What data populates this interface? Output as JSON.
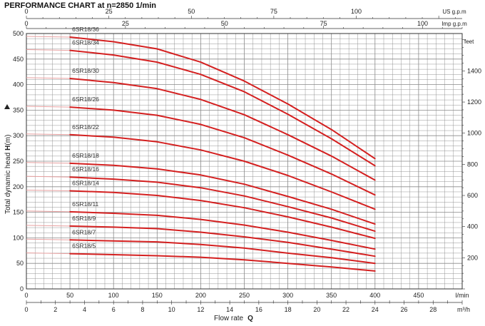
{
  "chart_data": {
    "type": "line",
    "title": "PERFORMANCE  CHART  at  n=2850 1/min",
    "xlabel": "Flow  rate",
    "xlabel_symbol": "Q",
    "ylabel": "Total dynamic head",
    "ylabel_symbol": "H",
    "ylabel_unit": "(m)",
    "x_unit": "l/min",
    "x_range": [
      0,
      500
    ],
    "y_range": [
      0,
      500
    ],
    "grid": true,
    "x_ticks": [
      "0",
      "50",
      "100",
      "150",
      "200",
      "250",
      "300",
      "350",
      "400",
      "450"
    ],
    "y_ticks": [
      "0",
      "50",
      "100",
      "150",
      "200",
      "250",
      "300",
      "350",
      "400",
      "450",
      "500"
    ],
    "secondary_x_axes": [
      {
        "unit": "m³/h",
        "position": "bottom",
        "range": [
          0,
          30
        ],
        "ticks": [
          "0",
          "2",
          "4",
          "6",
          "8",
          "10",
          "12",
          "14",
          "16",
          "18",
          "20",
          "22",
          "24",
          "26",
          "28"
        ]
      },
      {
        "unit": "US g.p.m",
        "position": "top",
        "range": [
          0,
          132.1
        ],
        "ticks": [
          "0",
          "25",
          "50",
          "75",
          "100"
        ]
      },
      {
        "unit": "Imp g.p.m",
        "position": "top",
        "range": [
          0,
          110
        ],
        "ticks": [
          "0",
          "25",
          "50",
          "75",
          "100"
        ]
      }
    ],
    "secondary_y_axis": {
      "unit": "feet",
      "position": "right",
      "range": [
        0,
        1640
      ],
      "ticks": [
        "200",
        "400",
        "600",
        "800",
        "1000",
        "1200",
        "1400"
      ]
    },
    "series": [
      {
        "name": "6SR18/36",
        "x": [
          50,
          100,
          150,
          200,
          250,
          300,
          350,
          400
        ],
        "y": [
          493,
          484,
          470,
          444,
          407,
          362,
          312,
          255
        ]
      },
      {
        "name": "6SR18/34",
        "x": [
          50,
          100,
          150,
          200,
          250,
          300,
          350,
          400
        ],
        "y": [
          467,
          458,
          444,
          420,
          386,
          342,
          294,
          241
        ]
      },
      {
        "name": "6SR18/30",
        "x": [
          50,
          100,
          150,
          200,
          250,
          300,
          350,
          400
        ],
        "y": [
          412,
          404,
          392,
          371,
          341,
          302,
          260,
          213
        ]
      },
      {
        "name": "6SR18/26",
        "x": [
          50,
          100,
          150,
          200,
          250,
          300,
          350,
          400
        ],
        "y": [
          356,
          350,
          340,
          322,
          296,
          262,
          225,
          184
        ]
      },
      {
        "name": "6SR18/22",
        "x": [
          50,
          100,
          150,
          200,
          250,
          300,
          350,
          400
        ],
        "y": [
          302,
          297,
          288,
          272,
          250,
          222,
          190,
          156
        ]
      },
      {
        "name": "6SR18/18",
        "x": [
          50,
          100,
          150,
          200,
          250,
          300,
          350,
          400
        ],
        "y": [
          246,
          242,
          235,
          223,
          205,
          181,
          156,
          127
        ]
      },
      {
        "name": "6SR18/16",
        "x": [
          50,
          100,
          150,
          200,
          250,
          300,
          350,
          400
        ],
        "y": [
          219,
          215,
          209,
          198,
          182,
          161,
          139,
          113
        ]
      },
      {
        "name": "6SR18/14",
        "x": [
          50,
          100,
          150,
          200,
          250,
          300,
          350,
          400
        ],
        "y": [
          192,
          189,
          183,
          173,
          159,
          141,
          121,
          99
        ]
      },
      {
        "name": "6SR18/11",
        "x": [
          50,
          100,
          150,
          200,
          250,
          300,
          350,
          400
        ],
        "y": [
          151,
          148,
          144,
          136,
          125,
          111,
          95,
          78
        ]
      },
      {
        "name": "6SR18/9",
        "x": [
          50,
          100,
          150,
          200,
          250,
          300,
          350,
          400
        ],
        "y": [
          123,
          121,
          118,
          111,
          102,
          91,
          78,
          64
        ]
      },
      {
        "name": "6SR18/7",
        "x": [
          50,
          100,
          150,
          200,
          250,
          300,
          350,
          400
        ],
        "y": [
          96,
          94,
          92,
          87,
          80,
          70,
          61,
          50
        ]
      },
      {
        "name": "6SR18/5",
        "x": [
          50,
          100,
          150,
          200,
          250,
          300,
          350,
          400
        ],
        "y": [
          69,
          67,
          65,
          62,
          57,
          50,
          43,
          35
        ]
      }
    ],
    "colors": {
      "curve": "#d42020",
      "grid": "#8a8a8a",
      "extension": "#e8a0a0"
    }
  }
}
